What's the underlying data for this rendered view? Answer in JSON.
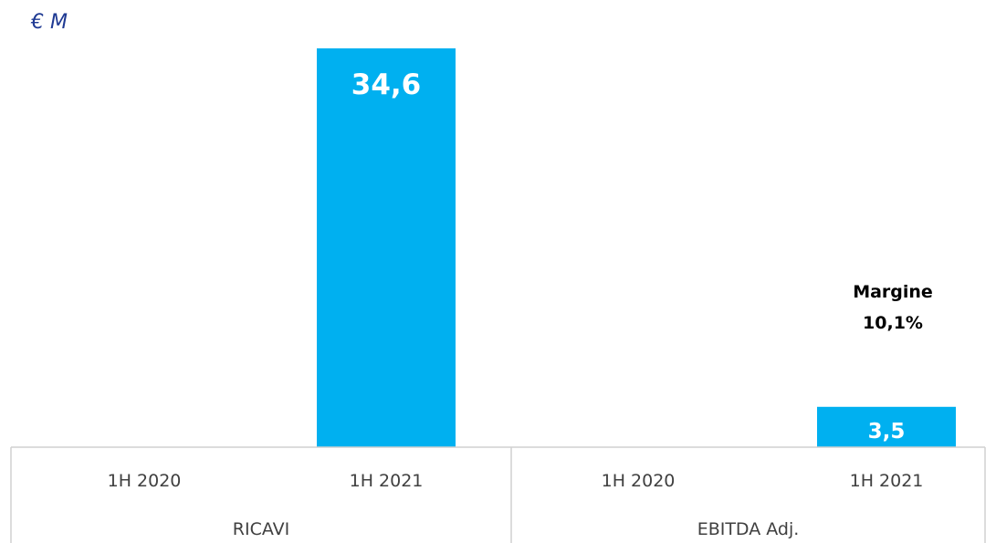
{
  "chart_data": {
    "type": "bar",
    "unit_label": "€ M",
    "groups": [
      {
        "label": "RICAVI",
        "categories": [
          {
            "label": "1H 2020",
            "value": null,
            "value_label": ""
          },
          {
            "label": "1H 2021",
            "value": 34.6,
            "value_label": "34,6"
          }
        ]
      },
      {
        "label": "EBITDA Adj.",
        "categories": [
          {
            "label": "1H 2020",
            "value": null,
            "value_label": ""
          },
          {
            "label": "1H 2021",
            "value": 3.5,
            "value_label": "3,5"
          }
        ]
      }
    ],
    "annotation": {
      "line1": "Margine",
      "line2": "10,1%"
    },
    "ylim": [
      0,
      38
    ],
    "bar_color": "#00b0f0",
    "unit_color": "#1f3a93",
    "grid": false,
    "legend": "none"
  }
}
